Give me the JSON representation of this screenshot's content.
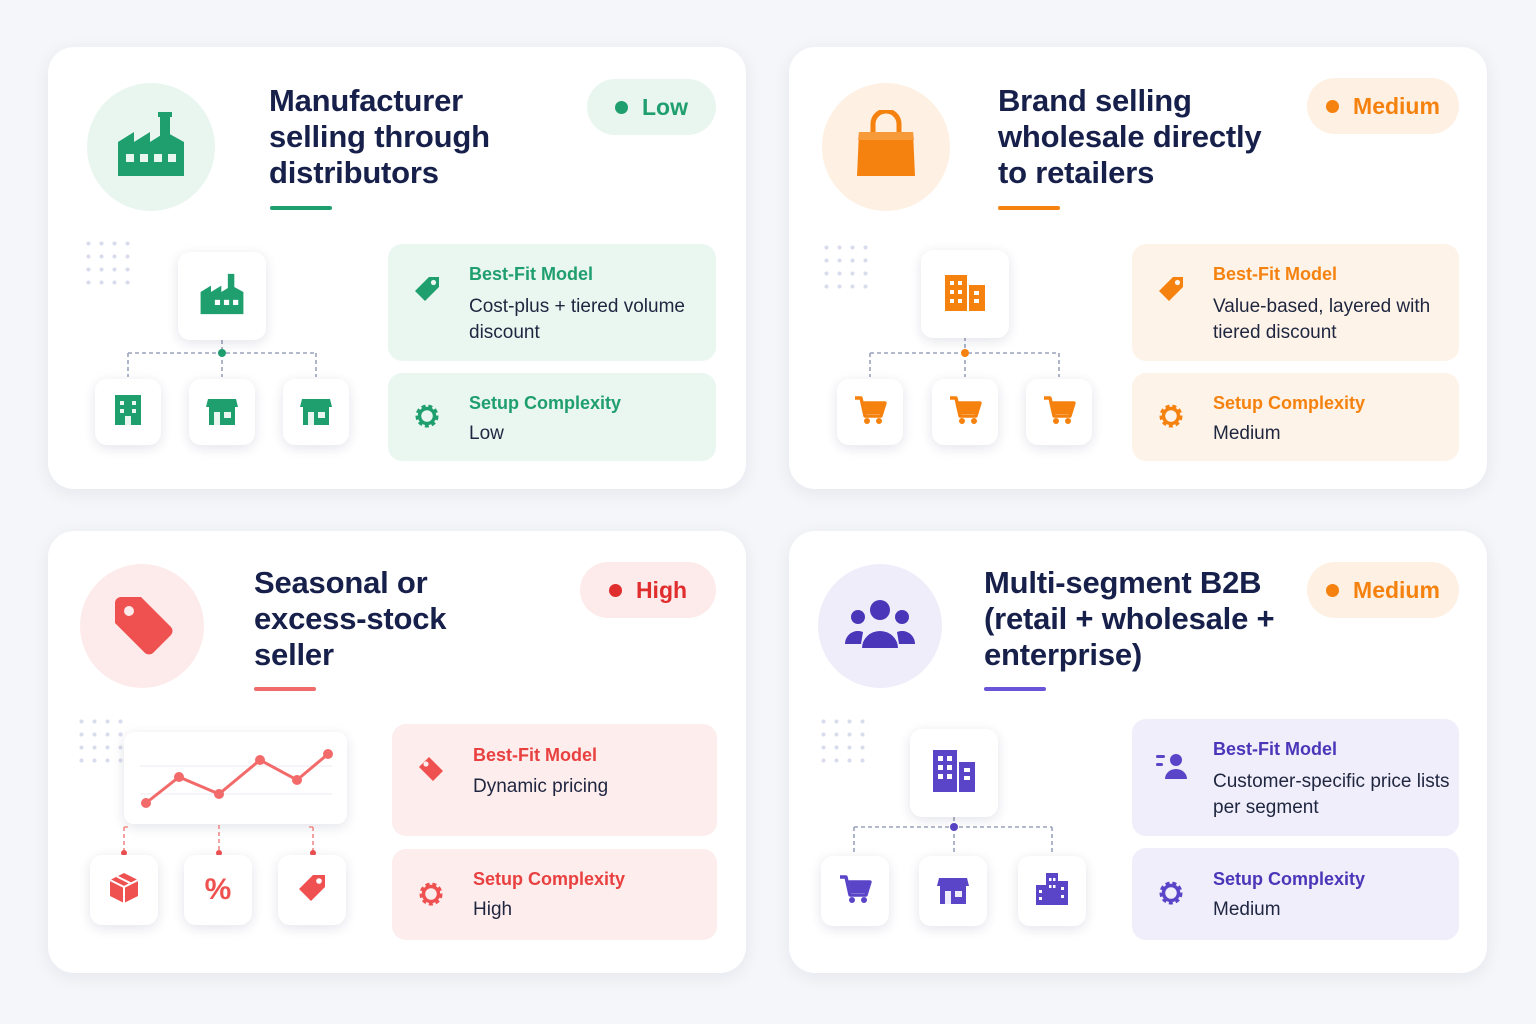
{
  "colors": {
    "green": "#1f9e6e",
    "green_light": "#eaf7f1",
    "orange": "#f5820f",
    "orange_light": "#fef2e6",
    "red": "#ef5050",
    "red_light": "#fdeded",
    "purple": "#5a44c7",
    "purple_light": "#efedfa"
  },
  "cards": [
    {
      "title": [
        "Manufacturer",
        "selling through",
        "distributors"
      ],
      "badge": "Low",
      "hero_icon": "factory-icon",
      "model_label": "Best-Fit Model",
      "model_value": "Cost-plus + tiered volume discount",
      "complexity_label": "Setup Complexity",
      "complexity_value": "Low",
      "diagram": {
        "parent_icon": "factory-icon",
        "child_icons": [
          "warehouse-icon",
          "store-icon",
          "store-icon"
        ]
      }
    },
    {
      "title": [
        "Brand selling",
        "wholesale directly",
        "to retailers"
      ],
      "badge": "Medium",
      "hero_icon": "shopping-bag-icon",
      "model_label": "Best-Fit Model",
      "model_value": "Value-based, layered with tiered discount",
      "complexity_label": "Setup Complexity",
      "complexity_value": "Medium",
      "diagram": {
        "parent_icon": "building-icon",
        "child_icons": [
          "cart-icon",
          "cart-icon",
          "cart-icon"
        ]
      }
    },
    {
      "title": [
        "Seasonal or",
        "excess-stock",
        "seller"
      ],
      "badge": "High",
      "hero_icon": "price-tag-icon",
      "model_label": "Best-Fit Model",
      "model_value": "Dynamic pricing",
      "complexity_label": "Setup Complexity",
      "complexity_value": "High",
      "diagram": {
        "parent_icon": "line-chart-icon",
        "child_icons": [
          "box-icon",
          "percent-icon",
          "tag-icon"
        ]
      }
    },
    {
      "title": [
        "Multi-segment B2B",
        "(retail + wholesale +",
        "enterprise)"
      ],
      "badge": "Medium",
      "hero_icon": "users-group-icon",
      "model_label": "Best-Fit Model",
      "model_value": "Customer-specific price lists per segment",
      "complexity_label": "Setup Complexity",
      "complexity_value": "Medium",
      "diagram": {
        "parent_icon": "building-icon",
        "child_icons": [
          "cart-icon",
          "store-icon",
          "city-icon"
        ]
      }
    }
  ],
  "percent_glyph": "%"
}
